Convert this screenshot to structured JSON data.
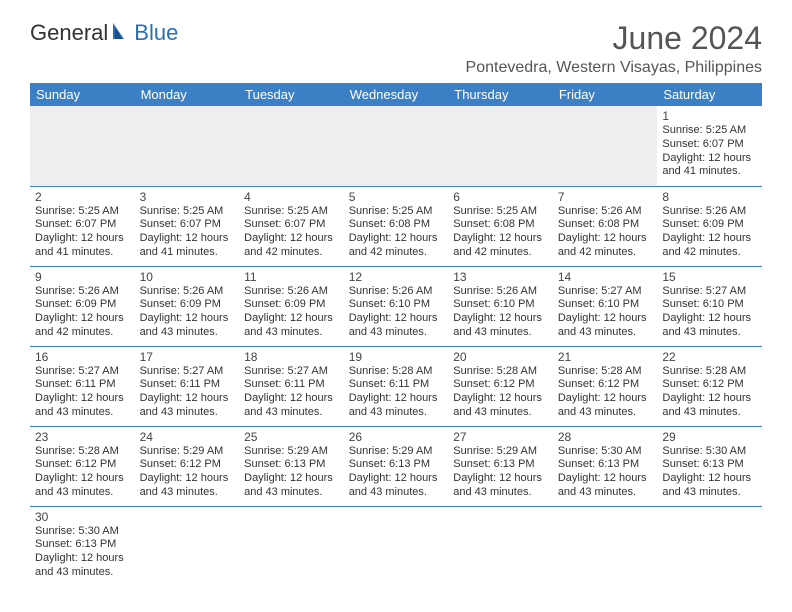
{
  "logo": {
    "general": "General",
    "blue": "Blue"
  },
  "title": "June 2024",
  "location": "Pontevedra, Western Visayas, Philippines",
  "colors": {
    "header_bg": "#3b7fc4",
    "header_text": "#ffffff",
    "cell_border": "#3b7fc4",
    "empty_bg": "#eeeeee",
    "text": "#333333",
    "title_color": "#555555"
  },
  "daysOfWeek": [
    "Sunday",
    "Monday",
    "Tuesday",
    "Wednesday",
    "Thursday",
    "Friday",
    "Saturday"
  ],
  "weeks": [
    [
      {
        "num": "",
        "sunrise": "",
        "sunset": "",
        "daylight": ""
      },
      {
        "num": "",
        "sunrise": "",
        "sunset": "",
        "daylight": ""
      },
      {
        "num": "",
        "sunrise": "",
        "sunset": "",
        "daylight": ""
      },
      {
        "num": "",
        "sunrise": "",
        "sunset": "",
        "daylight": ""
      },
      {
        "num": "",
        "sunrise": "",
        "sunset": "",
        "daylight": ""
      },
      {
        "num": "",
        "sunrise": "",
        "sunset": "",
        "daylight": ""
      },
      {
        "num": "1",
        "sunrise": "Sunrise: 5:25 AM",
        "sunset": "Sunset: 6:07 PM",
        "daylight": "Daylight: 12 hours and 41 minutes."
      }
    ],
    [
      {
        "num": "2",
        "sunrise": "Sunrise: 5:25 AM",
        "sunset": "Sunset: 6:07 PM",
        "daylight": "Daylight: 12 hours and 41 minutes."
      },
      {
        "num": "3",
        "sunrise": "Sunrise: 5:25 AM",
        "sunset": "Sunset: 6:07 PM",
        "daylight": "Daylight: 12 hours and 41 minutes."
      },
      {
        "num": "4",
        "sunrise": "Sunrise: 5:25 AM",
        "sunset": "Sunset: 6:07 PM",
        "daylight": "Daylight: 12 hours and 42 minutes."
      },
      {
        "num": "5",
        "sunrise": "Sunrise: 5:25 AM",
        "sunset": "Sunset: 6:08 PM",
        "daylight": "Daylight: 12 hours and 42 minutes."
      },
      {
        "num": "6",
        "sunrise": "Sunrise: 5:25 AM",
        "sunset": "Sunset: 6:08 PM",
        "daylight": "Daylight: 12 hours and 42 minutes."
      },
      {
        "num": "7",
        "sunrise": "Sunrise: 5:26 AM",
        "sunset": "Sunset: 6:08 PM",
        "daylight": "Daylight: 12 hours and 42 minutes."
      },
      {
        "num": "8",
        "sunrise": "Sunrise: 5:26 AM",
        "sunset": "Sunset: 6:09 PM",
        "daylight": "Daylight: 12 hours and 42 minutes."
      }
    ],
    [
      {
        "num": "9",
        "sunrise": "Sunrise: 5:26 AM",
        "sunset": "Sunset: 6:09 PM",
        "daylight": "Daylight: 12 hours and 42 minutes."
      },
      {
        "num": "10",
        "sunrise": "Sunrise: 5:26 AM",
        "sunset": "Sunset: 6:09 PM",
        "daylight": "Daylight: 12 hours and 43 minutes."
      },
      {
        "num": "11",
        "sunrise": "Sunrise: 5:26 AM",
        "sunset": "Sunset: 6:09 PM",
        "daylight": "Daylight: 12 hours and 43 minutes."
      },
      {
        "num": "12",
        "sunrise": "Sunrise: 5:26 AM",
        "sunset": "Sunset: 6:10 PM",
        "daylight": "Daylight: 12 hours and 43 minutes."
      },
      {
        "num": "13",
        "sunrise": "Sunrise: 5:26 AM",
        "sunset": "Sunset: 6:10 PM",
        "daylight": "Daylight: 12 hours and 43 minutes."
      },
      {
        "num": "14",
        "sunrise": "Sunrise: 5:27 AM",
        "sunset": "Sunset: 6:10 PM",
        "daylight": "Daylight: 12 hours and 43 minutes."
      },
      {
        "num": "15",
        "sunrise": "Sunrise: 5:27 AM",
        "sunset": "Sunset: 6:10 PM",
        "daylight": "Daylight: 12 hours and 43 minutes."
      }
    ],
    [
      {
        "num": "16",
        "sunrise": "Sunrise: 5:27 AM",
        "sunset": "Sunset: 6:11 PM",
        "daylight": "Daylight: 12 hours and 43 minutes."
      },
      {
        "num": "17",
        "sunrise": "Sunrise: 5:27 AM",
        "sunset": "Sunset: 6:11 PM",
        "daylight": "Daylight: 12 hours and 43 minutes."
      },
      {
        "num": "18",
        "sunrise": "Sunrise: 5:27 AM",
        "sunset": "Sunset: 6:11 PM",
        "daylight": "Daylight: 12 hours and 43 minutes."
      },
      {
        "num": "19",
        "sunrise": "Sunrise: 5:28 AM",
        "sunset": "Sunset: 6:11 PM",
        "daylight": "Daylight: 12 hours and 43 minutes."
      },
      {
        "num": "20",
        "sunrise": "Sunrise: 5:28 AM",
        "sunset": "Sunset: 6:12 PM",
        "daylight": "Daylight: 12 hours and 43 minutes."
      },
      {
        "num": "21",
        "sunrise": "Sunrise: 5:28 AM",
        "sunset": "Sunset: 6:12 PM",
        "daylight": "Daylight: 12 hours and 43 minutes."
      },
      {
        "num": "22",
        "sunrise": "Sunrise: 5:28 AM",
        "sunset": "Sunset: 6:12 PM",
        "daylight": "Daylight: 12 hours and 43 minutes."
      }
    ],
    [
      {
        "num": "23",
        "sunrise": "Sunrise: 5:28 AM",
        "sunset": "Sunset: 6:12 PM",
        "daylight": "Daylight: 12 hours and 43 minutes."
      },
      {
        "num": "24",
        "sunrise": "Sunrise: 5:29 AM",
        "sunset": "Sunset: 6:12 PM",
        "daylight": "Daylight: 12 hours and 43 minutes."
      },
      {
        "num": "25",
        "sunrise": "Sunrise: 5:29 AM",
        "sunset": "Sunset: 6:13 PM",
        "daylight": "Daylight: 12 hours and 43 minutes."
      },
      {
        "num": "26",
        "sunrise": "Sunrise: 5:29 AM",
        "sunset": "Sunset: 6:13 PM",
        "daylight": "Daylight: 12 hours and 43 minutes."
      },
      {
        "num": "27",
        "sunrise": "Sunrise: 5:29 AM",
        "sunset": "Sunset: 6:13 PM",
        "daylight": "Daylight: 12 hours and 43 minutes."
      },
      {
        "num": "28",
        "sunrise": "Sunrise: 5:30 AM",
        "sunset": "Sunset: 6:13 PM",
        "daylight": "Daylight: 12 hours and 43 minutes."
      },
      {
        "num": "29",
        "sunrise": "Sunrise: 5:30 AM",
        "sunset": "Sunset: 6:13 PM",
        "daylight": "Daylight: 12 hours and 43 minutes."
      }
    ],
    [
      {
        "num": "30",
        "sunrise": "Sunrise: 5:30 AM",
        "sunset": "Sunset: 6:13 PM",
        "daylight": "Daylight: 12 hours and 43 minutes."
      },
      {
        "num": "",
        "sunrise": "",
        "sunset": "",
        "daylight": ""
      },
      {
        "num": "",
        "sunrise": "",
        "sunset": "",
        "daylight": ""
      },
      {
        "num": "",
        "sunrise": "",
        "sunset": "",
        "daylight": ""
      },
      {
        "num": "",
        "sunrise": "",
        "sunset": "",
        "daylight": ""
      },
      {
        "num": "",
        "sunrise": "",
        "sunset": "",
        "daylight": ""
      },
      {
        "num": "",
        "sunrise": "",
        "sunset": "",
        "daylight": ""
      }
    ]
  ]
}
